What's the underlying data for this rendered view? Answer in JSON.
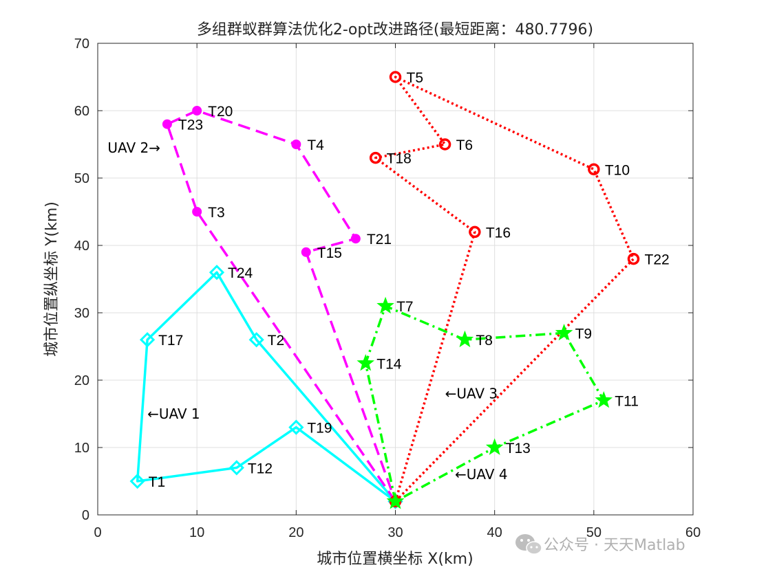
{
  "chart_data": {
    "type": "line",
    "title": "多组群蚁群算法优化2-opt改进路径(最短距离：480.7796)",
    "xlabel": "城市位置横坐标 X(km)",
    "ylabel": "城市位置纵坐标 Y(km)",
    "xlim": [
      0,
      60
    ],
    "ylim": [
      0,
      70
    ],
    "xticks": [
      0,
      10,
      20,
      30,
      40,
      50,
      60
    ],
    "yticks": [
      0,
      10,
      20,
      30,
      40,
      50,
      60,
      70
    ],
    "grid": true,
    "depot": {
      "x": 30,
      "y": 2
    },
    "series": [
      {
        "name": "UAV 1",
        "color": "#00ffff",
        "linestyle": "solid",
        "marker": "diamond",
        "annotation": "←UAV 1",
        "annotation_at": [
          5,
          15
        ],
        "route": [
          {
            "label": "Depot",
            "x": 30,
            "y": 2
          },
          {
            "label": "T2",
            "x": 16,
            "y": 26
          },
          {
            "label": "T24",
            "x": 12,
            "y": 36
          },
          {
            "label": "T17",
            "x": 5,
            "y": 26
          },
          {
            "label": "T1",
            "x": 4,
            "y": 5
          },
          {
            "label": "T12",
            "x": 14,
            "y": 7
          },
          {
            "label": "T19",
            "x": 20,
            "y": 13
          },
          {
            "label": "Depot",
            "x": 30,
            "y": 2
          }
        ]
      },
      {
        "name": "UAV 2",
        "color": "#ff00ff",
        "linestyle": "dashed",
        "marker": "dot",
        "annotation": "UAV 2→",
        "annotation_at": [
          1,
          54.5
        ],
        "route": [
          {
            "label": "Depot",
            "x": 30,
            "y": 2
          },
          {
            "label": "T3",
            "x": 10,
            "y": 45
          },
          {
            "label": "T23",
            "x": 7,
            "y": 58
          },
          {
            "label": "T20",
            "x": 10,
            "y": 60
          },
          {
            "label": "T4",
            "x": 20,
            "y": 55
          },
          {
            "label": "T21",
            "x": 26,
            "y": 41
          },
          {
            "label": "T15",
            "x": 21,
            "y": 39
          },
          {
            "label": "Depot",
            "x": 30,
            "y": 2
          }
        ]
      },
      {
        "name": "UAV 3",
        "color": "#ff0000",
        "linestyle": "dotted",
        "marker": "circle",
        "annotation": "←UAV 3",
        "annotation_at": [
          35,
          18
        ],
        "route": [
          {
            "label": "Depot",
            "x": 30,
            "y": 2
          },
          {
            "label": "T16",
            "x": 38,
            "y": 42
          },
          {
            "label": "T18",
            "x": 28,
            "y": 53
          },
          {
            "label": "T6",
            "x": 35,
            "y": 55
          },
          {
            "label": "T5",
            "x": 30,
            "y": 65
          },
          {
            "label": "T10",
            "x": 50,
            "y": 51.3
          },
          {
            "label": "T22",
            "x": 54,
            "y": 38
          },
          {
            "label": "Depot",
            "x": 30,
            "y": 2
          }
        ]
      },
      {
        "name": "UAV 4",
        "color": "#00ff00",
        "linestyle": "dashdot",
        "marker": "star",
        "annotation": "←UAV 4",
        "annotation_at": [
          36,
          6
        ],
        "route": [
          {
            "label": "Depot",
            "x": 30,
            "y": 2
          },
          {
            "label": "T14",
            "x": 27,
            "y": 22.5
          },
          {
            "label": "T7",
            "x": 29,
            "y": 31
          },
          {
            "label": "T8",
            "x": 37,
            "y": 26
          },
          {
            "label": "T9",
            "x": 47,
            "y": 27
          },
          {
            "label": "T11",
            "x": 51,
            "y": 17
          },
          {
            "label": "T13",
            "x": 40,
            "y": 10
          },
          {
            "label": "Depot",
            "x": 30,
            "y": 2
          }
        ]
      }
    ]
  },
  "watermark": {
    "text": "公众号 · 天天Matlab",
    "icon": "wechat-icon"
  }
}
